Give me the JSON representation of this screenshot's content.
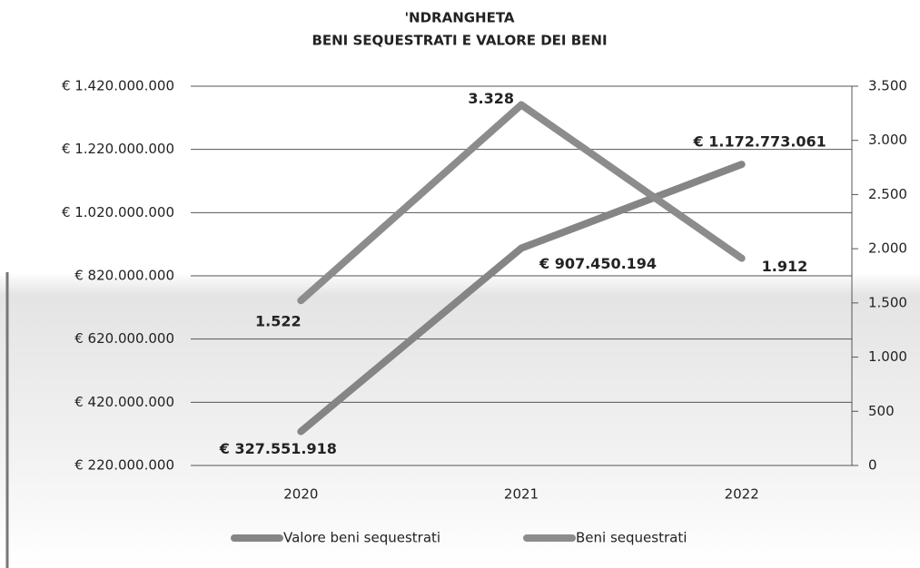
{
  "chart_data": {
    "type": "line",
    "title": [
      "'NDRANGHETA",
      "BENI SEQUESTRATI E VALORE DEI BENI"
    ],
    "categories": [
      "2020",
      "2021",
      "2022"
    ],
    "series": [
      {
        "name": "Valore beni sequestrati",
        "color": "#858585",
        "values": [
          327551918,
          907450194,
          1172773061
        ],
        "value_labels": [
          "€ 327.551.918",
          "€ 907.450.194",
          "€ 1.172.773.061"
        ]
      },
      {
        "name": "Beni sequestrati",
        "color": "#8c8c8c",
        "axis": "y2",
        "values": [
          1522,
          3328,
          1912
        ],
        "value_labels": [
          "1.522",
          "3.328",
          "1.912"
        ]
      }
    ],
    "ylim": [
      220000000,
      1420000000
    ],
    "yticks": [
      {
        "value": 220000000,
        "label": "€ 220.000.000"
      },
      {
        "value": 420000000,
        "label": "€ 420.000.000"
      },
      {
        "value": 620000000,
        "label": "€ 620.000.000"
      },
      {
        "value": 820000000,
        "label": "€ 820.000.000"
      },
      {
        "value": 1020000000,
        "label": "€ 1.020.000.000"
      },
      {
        "value": 1220000000,
        "label": "€ 1.220.000.000"
      },
      {
        "value": 1420000000,
        "label": "€ 1.420.000.000"
      }
    ],
    "y2lim": [
      0,
      3500
    ],
    "y2ticks": [
      0,
      500,
      {
        "value": 1000,
        "label": "1.000"
      },
      {
        "value": 1500,
        "label": "1.500"
      },
      {
        "value": 2000,
        "label": "2.000"
      },
      {
        "value": 2500,
        "label": "2.500"
      },
      {
        "value": 3000,
        "label": "3.000"
      },
      {
        "value": 3500,
        "label": "3.500"
      }
    ],
    "grid": true,
    "legend": "bottom"
  }
}
